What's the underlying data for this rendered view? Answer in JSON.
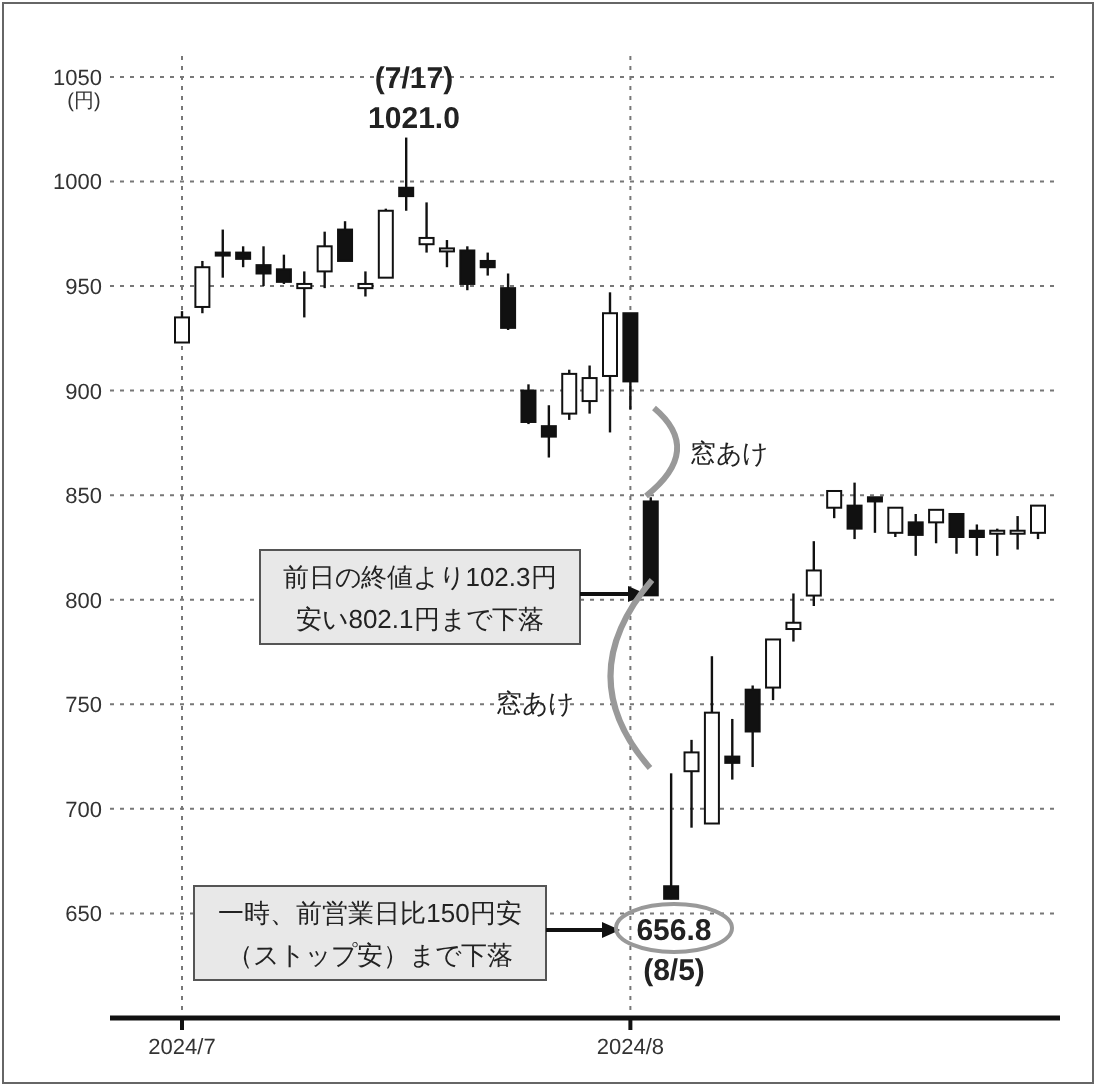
{
  "chart_data": {
    "type": "candlestick",
    "ylabel": "(円)",
    "categories": [
      "2024/7",
      null,
      null,
      null,
      null,
      null,
      null,
      null,
      null,
      null,
      null,
      null,
      null,
      null,
      null,
      null,
      null,
      null,
      null,
      null,
      null,
      null,
      "2024/8",
      null,
      null,
      null,
      null,
      null,
      null,
      null,
      null,
      null,
      null,
      null,
      null,
      null,
      null,
      null,
      null,
      null,
      null,
      null,
      null
    ],
    "ohlc": [
      [
        923,
        938,
        923,
        935
      ],
      [
        940,
        962,
        937,
        959
      ],
      [
        966,
        977,
        954,
        965
      ],
      [
        966,
        969,
        959,
        963
      ],
      [
        960,
        969,
        950,
        956
      ],
      [
        958,
        965,
        951,
        952
      ],
      [
        949,
        957,
        935,
        951
      ],
      [
        957,
        976,
        949,
        969
      ],
      [
        977,
        981,
        962,
        962
      ],
      [
        949,
        957,
        945,
        951
      ],
      [
        954,
        987,
        954,
        986
      ],
      [
        997,
        1021.0,
        986,
        993
      ],
      [
        970,
        990,
        966,
        973
      ],
      [
        968,
        972,
        959,
        968
      ],
      [
        967,
        969,
        948,
        951
      ],
      [
        962,
        966,
        955,
        959
      ],
      [
        949,
        956,
        929,
        930
      ],
      [
        900,
        903,
        884,
        885
      ],
      [
        883,
        893,
        868,
        878
      ],
      [
        889,
        910,
        886,
        908
      ],
      [
        895,
        912,
        889,
        906
      ],
      [
        907,
        947,
        880,
        937
      ],
      [
        937,
        937,
        891,
        904.4
      ],
      [
        847,
        849,
        802,
        802.1
      ],
      [
        663,
        717,
        656.8,
        657
      ],
      [
        718,
        733,
        691,
        727
      ],
      [
        693,
        773,
        693,
        746
      ],
      [
        725,
        743,
        714,
        722
      ],
      [
        757,
        759,
        720,
        737
      ],
      [
        758,
        781,
        752,
        781
      ],
      [
        786,
        803,
        780,
        789
      ],
      [
        802,
        828,
        797,
        814
      ],
      [
        844,
        852,
        839,
        852
      ],
      [
        845,
        856,
        829,
        834
      ],
      [
        849,
        849,
        832,
        847
      ],
      [
        832,
        844,
        830,
        844
      ],
      [
        837,
        841,
        821,
        831
      ],
      [
        837,
        843,
        827,
        843
      ],
      [
        841,
        841,
        822,
        830
      ],
      [
        833,
        836,
        821,
        830
      ],
      [
        833,
        834,
        821,
        833
      ],
      [
        833,
        840,
        824,
        833
      ],
      [
        832,
        845,
        829,
        845
      ]
    ],
    "ylim": [
      600,
      1060
    ],
    "yticks": [
      650,
      700,
      750,
      800,
      850,
      900,
      950,
      1000,
      1050
    ],
    "grid": true,
    "annotations": [
      "(7/17)",
      "1021.0",
      "窓あけ",
      "前日の終値より102.3円安い802.1円まで下落",
      "窓あけ",
      "一時、前営業日比150円安（ストップ安）まで下落",
      "656.8",
      "(8/5)"
    ]
  }
}
